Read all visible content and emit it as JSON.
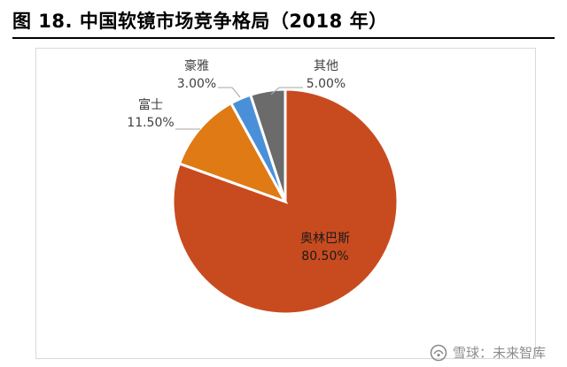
{
  "title": "图 18. 中国软镜市场竞争格局（2018 年）",
  "chart_data": {
    "type": "pie",
    "start_angle_deg": 0,
    "direction": "clockwise",
    "slices": [
      {
        "label": "奥林巴斯",
        "value": 80.5,
        "display": "80.50%",
        "color": "#c84b1f"
      },
      {
        "label": "富士",
        "value": 11.5,
        "display": "11.50%",
        "color": "#e07a14"
      },
      {
        "label": "豪雅",
        "value": 3.0,
        "display": "3.00%",
        "color": "#4a90d9"
      },
      {
        "label": "其他",
        "value": 5.0,
        "display": "5.00%",
        "color": "#6b6b6b"
      }
    ]
  },
  "watermark": {
    "text": "雪球：未来智库"
  }
}
